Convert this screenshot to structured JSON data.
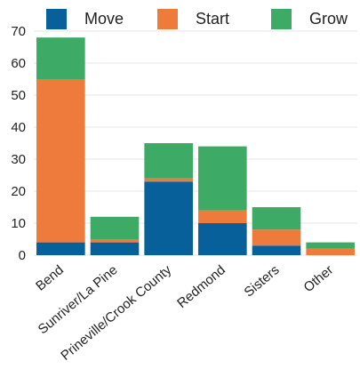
{
  "chart_data": {
    "type": "bar",
    "stacked": true,
    "title": "",
    "xlabel": "",
    "ylabel": "",
    "ylim": [
      0,
      70
    ],
    "yticks": [
      0,
      10,
      20,
      30,
      40,
      50,
      60,
      70
    ],
    "grid": true,
    "legend_position": "top",
    "categories": [
      "Bend",
      "Sunriver/La Pine",
      "Prineville/Crook County",
      "Redmond",
      "Sisters",
      "Other"
    ],
    "series": [
      {
        "name": "Move",
        "color": "#07609a",
        "values": [
          4,
          4,
          23,
          10,
          3,
          0
        ]
      },
      {
        "name": "Start",
        "color": "#ee7b3c",
        "values": [
          51,
          1,
          1,
          4,
          5,
          2
        ]
      },
      {
        "name": "Grow",
        "color": "#3dab66",
        "values": [
          13,
          7,
          11,
          20,
          7,
          2
        ]
      }
    ]
  }
}
